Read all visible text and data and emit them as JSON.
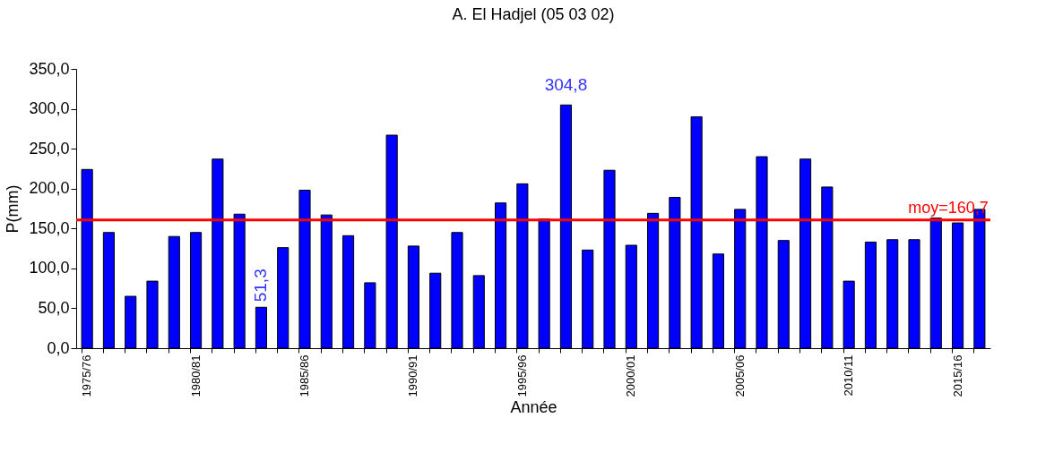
{
  "chart_data": {
    "type": "bar",
    "title": "A. El Hadjel (05 03 02)",
    "xlabel": "Année",
    "ylabel": "P(mm)",
    "categories": [
      "1975/76",
      null,
      null,
      null,
      null,
      "1980/81",
      null,
      null,
      null,
      null,
      "1985/86",
      null,
      null,
      null,
      null,
      "1990/91",
      null,
      null,
      null,
      null,
      "1995/96",
      null,
      null,
      null,
      null,
      "2000/01",
      null,
      null,
      null,
      null,
      "2005/06",
      null,
      null,
      null,
      null,
      "2010/11",
      null,
      null,
      null,
      null,
      "2015/16",
      null
    ],
    "values": [
      224,
      145,
      65,
      84,
      140,
      145,
      237,
      168,
      51.3,
      126,
      198,
      167,
      141,
      82,
      267,
      128,
      94,
      145,
      91,
      182,
      206,
      162,
      304.8,
      123,
      223,
      129,
      169,
      189,
      290,
      118,
      174,
      240,
      135,
      237,
      202,
      84,
      133,
      136,
      136,
      163,
      157,
      174
    ],
    "value_labels": [
      null,
      null,
      null,
      null,
      null,
      null,
      null,
      null,
      "51,3",
      null,
      null,
      null,
      null,
      null,
      null,
      null,
      null,
      null,
      null,
      null,
      null,
      null,
      "304,8",
      null,
      null,
      null,
      null,
      null,
      null,
      null,
      null,
      null,
      null,
      null,
      null,
      null,
      null,
      null,
      null,
      null,
      null,
      null
    ],
    "color": "#0000ff",
    "ylim": [
      0,
      350
    ],
    "yticks": [
      {
        "value": 0,
        "label": "0,0"
      },
      {
        "value": 50,
        "label": "50,0"
      },
      {
        "value": 100,
        "label": "100,0"
      },
      {
        "value": 150,
        "label": "150,0"
      },
      {
        "value": 200,
        "label": "200,0"
      },
      {
        "value": 250,
        "label": "250,0"
      },
      {
        "value": 300,
        "label": "300,0"
      },
      {
        "value": 350,
        "label": "350,0"
      }
    ],
    "ref_lines": [
      {
        "axis": "y",
        "value": 160.7,
        "label": "moy=160,7",
        "color": "#ff0000"
      }
    ],
    "grid": false
  }
}
